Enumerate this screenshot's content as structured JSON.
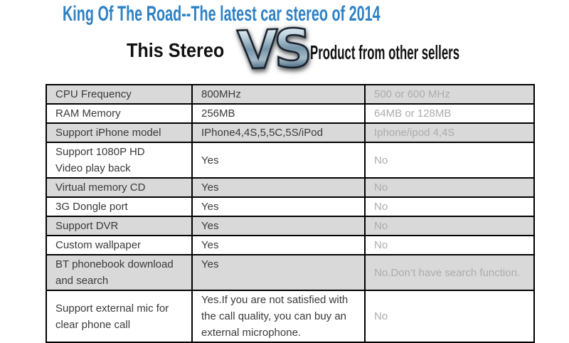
{
  "header": {
    "title": "King Of The Road--The latest car stereo of 2014"
  },
  "versus": {
    "left_label": "This Stereo",
    "vs_label": "VS",
    "right_label": "Product from other sellers"
  },
  "table": {
    "column_keys": [
      "feature",
      "this_stereo",
      "other_sellers"
    ],
    "rows": [
      {
        "feature": "CPU Frequency",
        "this_stereo": "800MHz",
        "other_sellers": "500 or 600 MHz",
        "shaded": true
      },
      {
        "feature": "RAM Memory",
        "this_stereo": "256MB",
        "other_sellers": "64MB or 128MB",
        "shaded": false
      },
      {
        "feature": "Support iPhone model",
        "this_stereo": "IPhone4,4S,5,5C,5S/iPod",
        "other_sellers": "Iphone/ipod 4,4S",
        "shaded": true
      },
      {
        "feature": "Support 1080P HD\nVideo play back",
        "this_stereo": "Yes",
        "other_sellers": "No",
        "shaded": false
      },
      {
        "feature": "Virtual memory CD",
        "this_stereo": "Yes",
        "other_sellers": "No",
        "shaded": true
      },
      {
        "feature": "3G Dongle port",
        "this_stereo": "Yes",
        "other_sellers": "No",
        "shaded": false
      },
      {
        "feature": "Support DVR",
        "this_stereo": "Yes",
        "other_sellers": "No",
        "shaded": true
      },
      {
        "feature": "Custom wallpaper",
        "this_stereo": "Yes",
        "other_sellers": "No",
        "shaded": false
      },
      {
        "feature": "BT phonebook download\nand search",
        "this_stereo": "Yes",
        "other_sellers": "No.Don’t have search function.",
        "shaded": true
      },
      {
        "feature": "Support external mic for\nclear phone call",
        "this_stereo": "Yes.If you are not satisfied with\nthe call quality, you can buy an\nexternal microphone.",
        "other_sellers": "No",
        "shaded": false
      }
    ]
  },
  "colors": {
    "accent": "#2E81C4",
    "row_shade": "#D9D9D9",
    "muted_text": "#ACACAC",
    "body_text": "#3A3A3A",
    "table_border": "#000000"
  }
}
